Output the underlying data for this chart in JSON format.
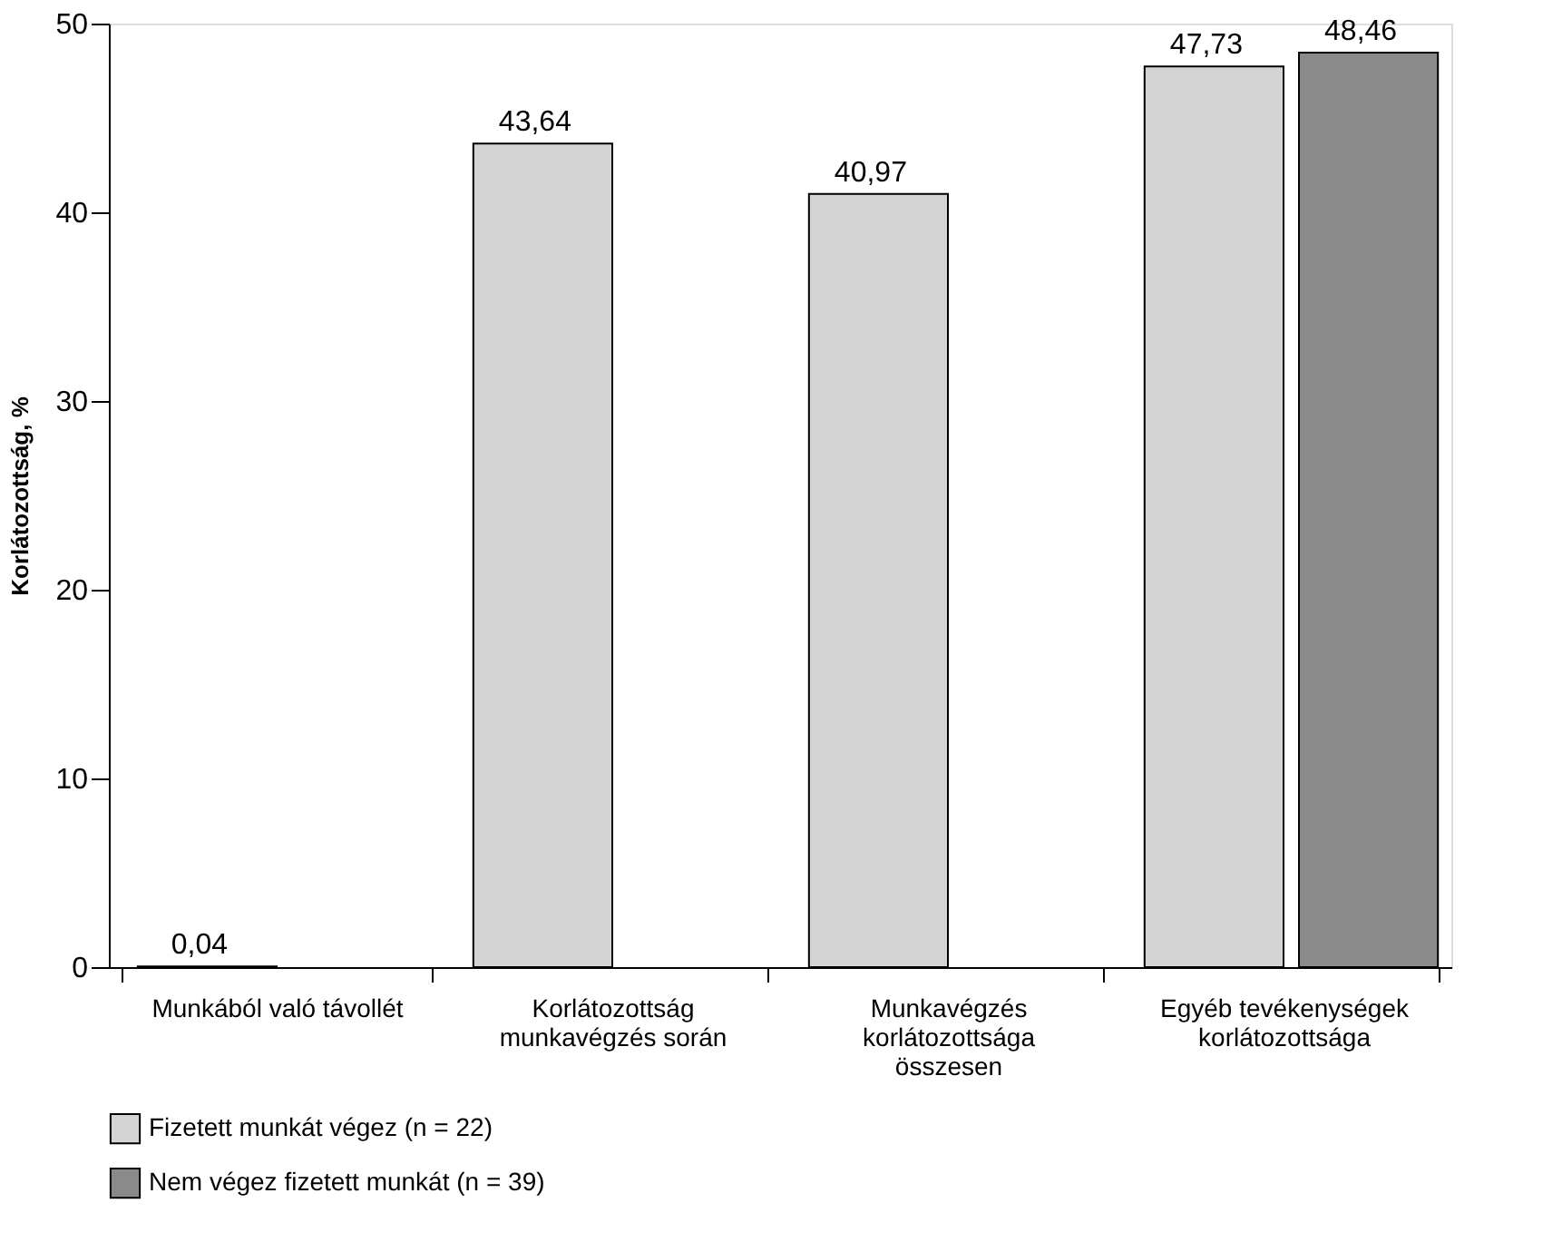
{
  "chart_data": {
    "type": "bar",
    "ylabel": "Korlátozottság, %",
    "categories": [
      "Munkából való távollét",
      "Korlátozottság munkavégzés során",
      "Munkavégzés korlátozottsága összesen",
      "Egyéb tevékenységek korlátozottsága"
    ],
    "series": [
      {
        "name": "Fizetett munkát végez (n = 22)",
        "color": "#d4d4d4",
        "values": [
          0.04,
          43.64,
          40.97,
          47.73
        ],
        "value_labels": [
          "0,04",
          "43,64",
          "40,97",
          "47,73"
        ]
      },
      {
        "name": "Nem végez fizetett munkát (n = 39)",
        "color": "#8a8a8a",
        "values": [
          null,
          null,
          null,
          48.46
        ],
        "value_labels": [
          null,
          null,
          null,
          "48,46"
        ]
      }
    ],
    "ylim": [
      0,
      50
    ],
    "yticks": [
      0,
      10,
      20,
      30,
      40,
      50
    ],
    "grid": false,
    "legend": "bottom left"
  }
}
